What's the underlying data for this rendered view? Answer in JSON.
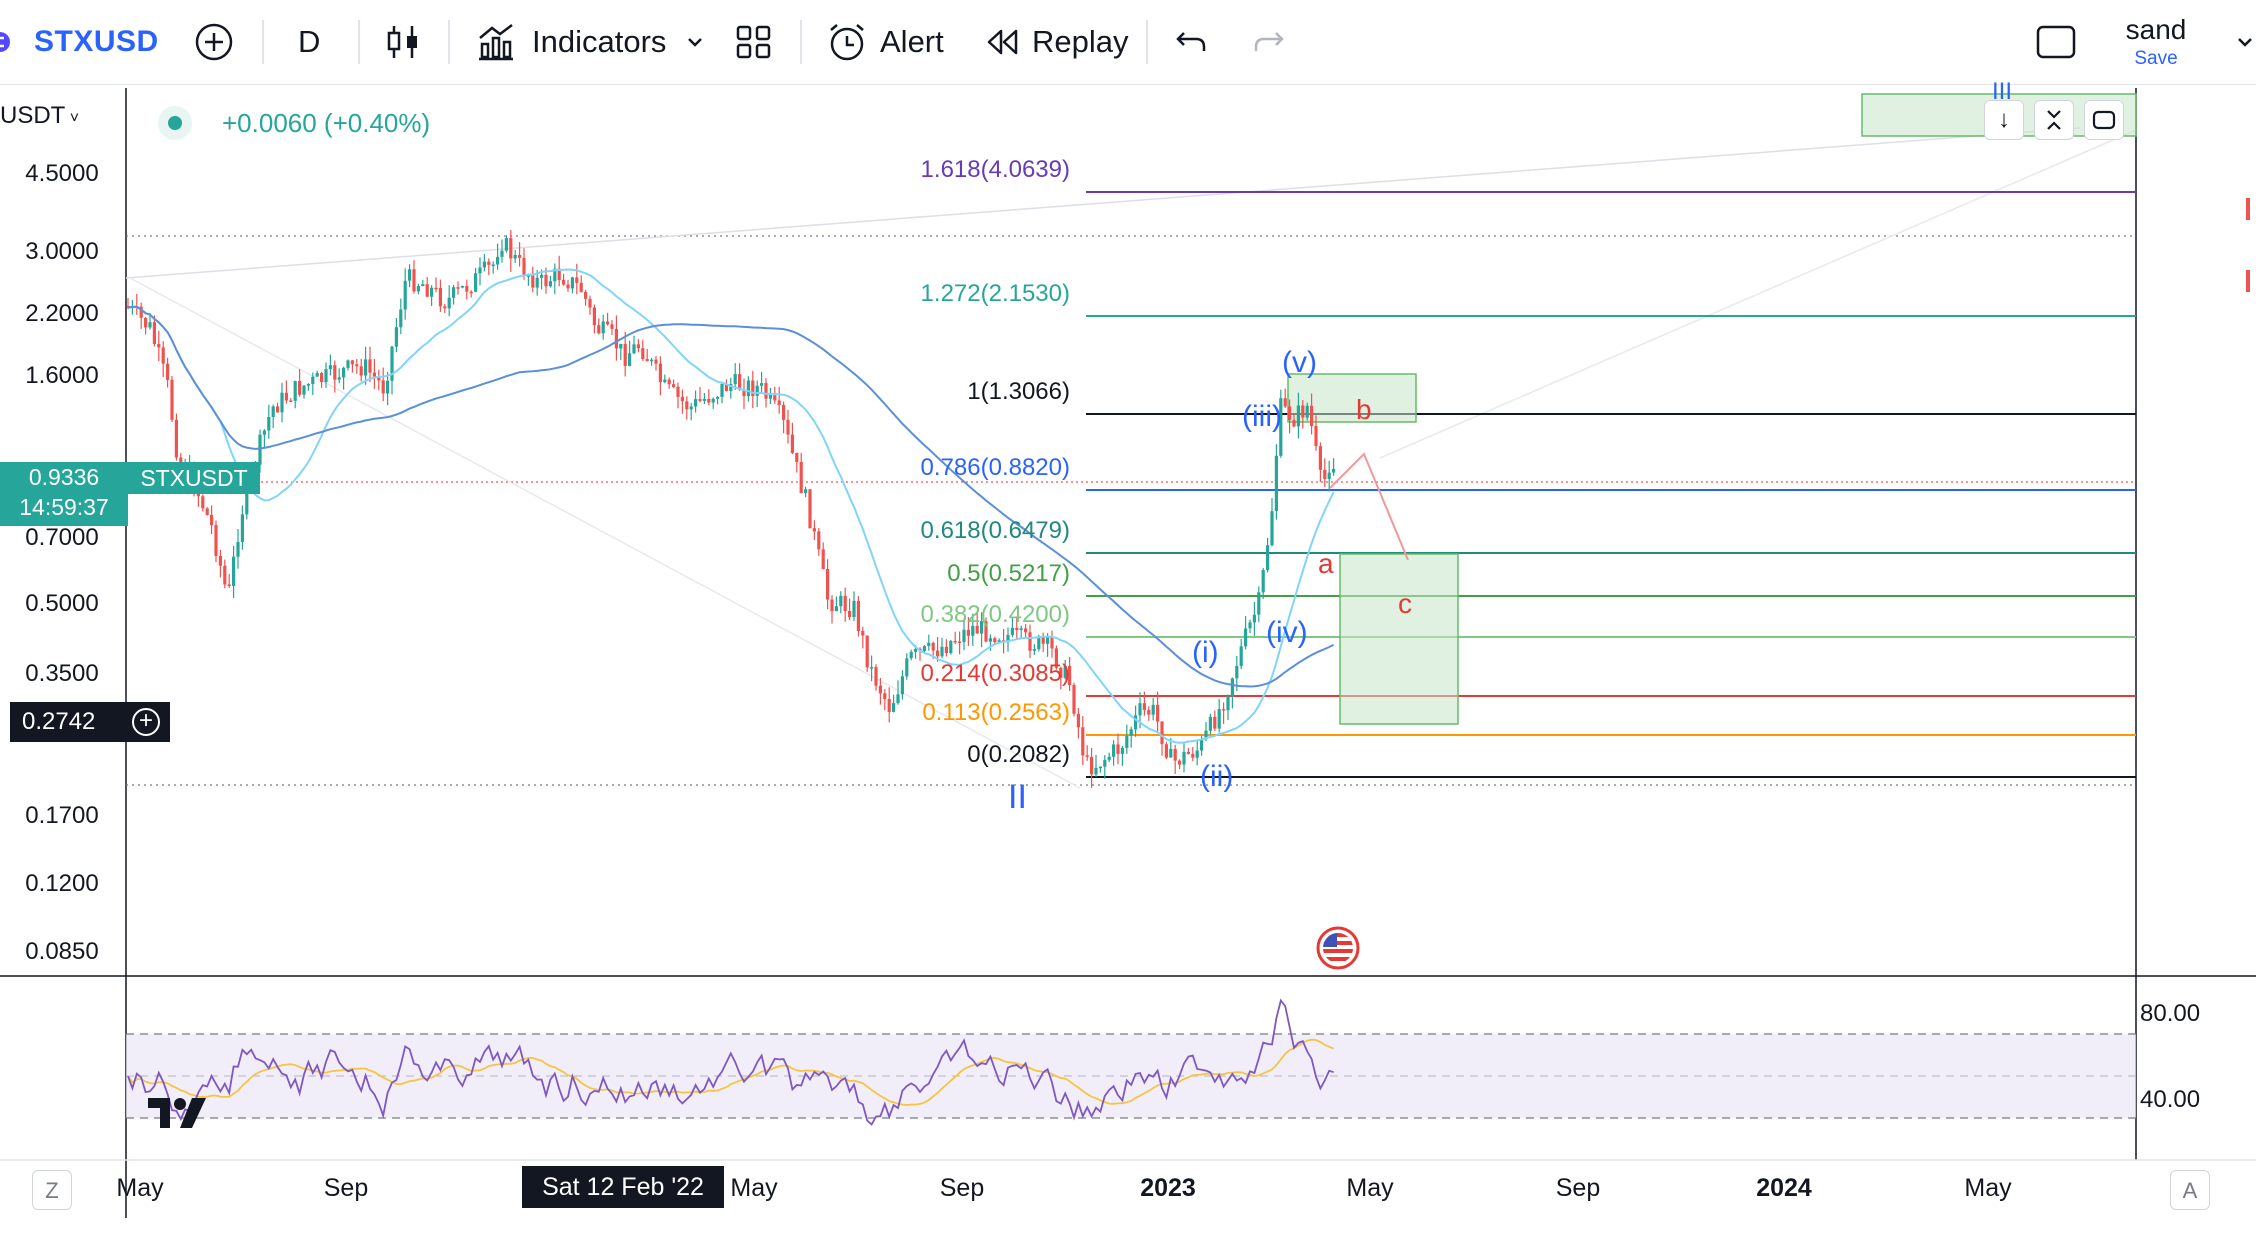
{
  "toolbar": {
    "symbol": "STXUSD",
    "interval": "D",
    "indicators_label": "Indicators",
    "alert_label": "Alert",
    "replay_label": "Replay",
    "layout_name": "sand",
    "save_label": "Save"
  },
  "legend": {
    "change": "+0.0060 (+0.40%)"
  },
  "price_axis": {
    "unit_label": "USDT",
    "ticks": [
      "4.5000",
      "3.0000",
      "2.2000",
      "1.6000",
      "0.7000",
      "0.5000",
      "0.3500",
      "0.1700",
      "0.1200",
      "0.0850"
    ],
    "current_price": "0.9336",
    "countdown": "14:59:37",
    "current_symbol": "STXUSDT",
    "crosshair_price": "0.2742"
  },
  "fib_levels": [
    {
      "label": "1.618(4.0639)",
      "color": "#673ab7"
    },
    {
      "label": "1.272(2.1530)",
      "color": "#26a69a"
    },
    {
      "label": "1(1.3066)",
      "color": "#131722"
    },
    {
      "label": "0.786(0.8820)",
      "color": "#2962ff"
    },
    {
      "label": "0.618(0.6479)",
      "color": "#22897e"
    },
    {
      "label": "0.5(0.5217)",
      "color": "#43a047"
    },
    {
      "label": "0.382(0.4200)",
      "color": "#81c784"
    },
    {
      "label": "0.214(0.3085)",
      "color": "#e53935"
    },
    {
      "label": "0.113(0.2563)",
      "color": "#ff9800"
    },
    {
      "label": "0(0.2082)",
      "color": "#131722"
    }
  ],
  "wave_labels": {
    "v": "(v)",
    "iii": "(iii)",
    "i": "(i)",
    "iv": "(iv)",
    "ii": "(ii)",
    "II": "II",
    "III": "III",
    "a": "a",
    "b": "b",
    "c": "c"
  },
  "time_axis": {
    "labels": [
      "May",
      "Sep",
      "May",
      "Sep",
      "2023",
      "May",
      "Sep",
      "2024",
      "May"
    ],
    "crosshair_date": "Sat 12 Feb '22"
  },
  "rsi_axis": {
    "upper": "80.00",
    "lower": "40.00"
  },
  "corner_buttons": {
    "left": "Z",
    "right": "A"
  },
  "colors": {
    "bull": "#26a69a",
    "bear": "#ef5350",
    "ma_fast": "#81d4fa",
    "ma_slow": "#5b8fd9",
    "rsi": "#7e57c2",
    "rsi_ma": "#f5c542",
    "zone": "#c8e6c9"
  }
}
